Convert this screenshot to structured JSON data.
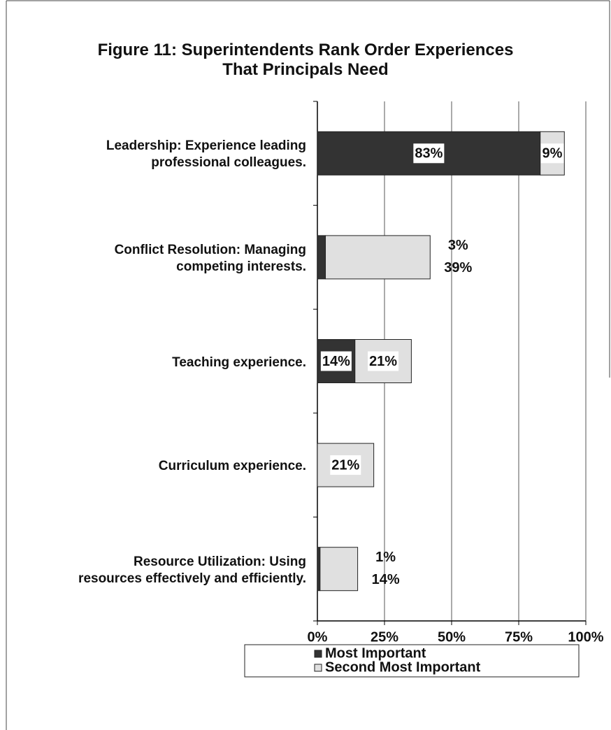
{
  "chart_data": {
    "type": "stacked_barh",
    "title": "Figure 11: Superintendents Rank Order Experiences\nThat Principals Need",
    "categories": [
      "Leadership: Experience leading\nprofessional colleagues.",
      "Conflict Resolution: Managing\ncompeting interests.",
      "Teaching experience.",
      "Curriculum experience.",
      "Resource Utilization: Using\nresources effectively and efficiently."
    ],
    "series": [
      {
        "name": "Most Important",
        "color": "#333333",
        "values": [
          83,
          3,
          14,
          null,
          1
        ],
        "value_labels": [
          "83%",
          "3%",
          "14%",
          null,
          "1%"
        ]
      },
      {
        "name": "Second Most Important",
        "color": "#e0e0e0",
        "values": [
          9,
          39,
          21,
          21,
          14
        ],
        "value_labels": [
          "9%",
          "39%",
          "21%",
          "21%",
          "14%"
        ]
      }
    ],
    "xlim": [
      0,
      100
    ],
    "xticks": [
      {
        "value": 0,
        "label": "0%"
      },
      {
        "value": 25,
        "label": "25%"
      },
      {
        "value": 50,
        "label": "50%"
      },
      {
        "value": 75,
        "label": "75%"
      },
      {
        "value": 100,
        "label": "100%"
      }
    ],
    "grid": true,
    "legend": "bottom"
  }
}
